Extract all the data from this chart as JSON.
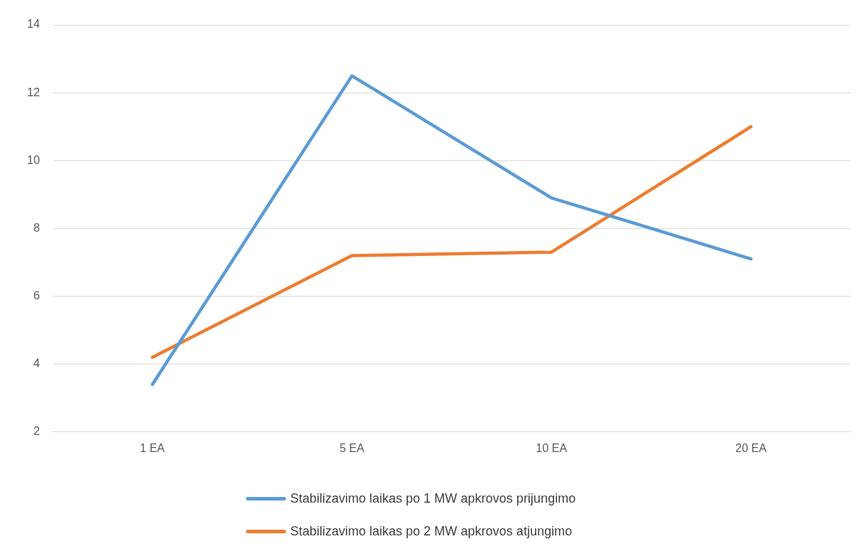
{
  "chart_data": {
    "type": "line",
    "categories": [
      "1 EA",
      "5 EA",
      "10 EA",
      "20 EA"
    ],
    "series": [
      {
        "name": "Stabilizavimo laikas po 1 MW apkrovos prijungimo",
        "color": "#5b9bd5",
        "values": [
          3.4,
          12.5,
          8.9,
          7.1
        ]
      },
      {
        "name": "Stabilizavimo laikas po 2 MW apkrovos atjungimo",
        "color": "#ed7d31",
        "values": [
          4.2,
          7.2,
          7.3,
          11.0
        ]
      }
    ],
    "ylim": [
      2,
      14
    ],
    "yticks": [
      2,
      4,
      6,
      8,
      10,
      12,
      14
    ],
    "grid": "y",
    "legend": "bottom",
    "marker": "none",
    "line_style": "solid"
  }
}
